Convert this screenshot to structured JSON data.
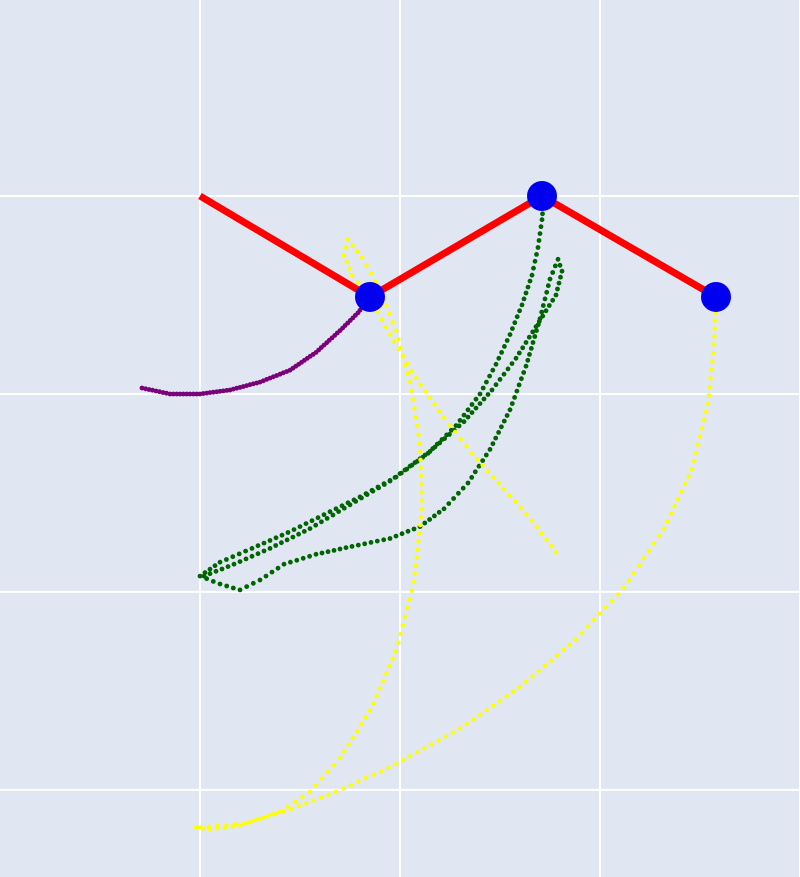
{
  "chart_data": {
    "type": "scatter",
    "title": "",
    "xlabel": "",
    "ylabel": "",
    "grid": true,
    "xlim": [
      -1.0,
      3.0
    ],
    "ylim": [
      -3.44,
      0.99
    ],
    "xticks": [
      0,
      1,
      2,
      3
    ],
    "yticks": [
      -3,
      -2,
      -1,
      0
    ],
    "tick_labels_visible": false,
    "colors": {
      "background": "#e0e6f2",
      "grid": "#ffffff",
      "link": "#ff0000",
      "joint": "#0000ee",
      "trace_purple": "#7a007a",
      "trace_green": "#006400",
      "trace_yellow": "#ffff00"
    },
    "links": {
      "x": [
        0.0,
        0.85,
        1.71,
        2.58
      ],
      "y": [
        0.0,
        -0.51,
        0.0,
        -0.51
      ]
    },
    "joints": {
      "x": [
        0.85,
        1.71,
        2.58
      ],
      "y": [
        -0.51,
        0.0,
        -0.51
      ]
    },
    "traces": [
      {
        "color": "purple",
        "points": [
          [
            -0.29,
            -0.97
          ],
          [
            -0.15,
            -1.0
          ],
          [
            0.0,
            -1.0
          ],
          [
            0.15,
            -0.98
          ],
          [
            0.3,
            -0.94
          ],
          [
            0.45,
            -0.88
          ],
          [
            0.58,
            -0.79
          ],
          [
            0.7,
            -0.68
          ],
          [
            0.79,
            -0.59
          ],
          [
            0.85,
            -0.51
          ]
        ]
      },
      {
        "color": "green",
        "points": [
          [
            1.72,
            0.0
          ],
          [
            1.71,
            -0.12
          ],
          [
            1.69,
            -0.26
          ],
          [
            1.66,
            -0.4
          ],
          [
            1.61,
            -0.55
          ],
          [
            1.55,
            -0.7
          ],
          [
            1.48,
            -0.85
          ],
          [
            1.4,
            -1.0
          ],
          [
            1.28,
            -1.16
          ],
          [
            1.14,
            -1.3
          ],
          [
            0.98,
            -1.42
          ],
          [
            0.8,
            -1.52
          ],
          [
            0.62,
            -1.61
          ],
          [
            0.44,
            -1.7
          ],
          [
            0.26,
            -1.78
          ],
          [
            0.1,
            -1.85
          ],
          [
            0.0,
            -1.92
          ],
          [
            0.1,
            -1.96
          ],
          [
            0.2,
            -1.99
          ],
          [
            0.3,
            -1.94
          ],
          [
            0.42,
            -1.86
          ],
          [
            0.58,
            -1.81
          ],
          [
            0.76,
            -1.77
          ],
          [
            0.95,
            -1.73
          ],
          [
            1.1,
            -1.67
          ],
          [
            1.22,
            -1.58
          ],
          [
            1.34,
            -1.45
          ],
          [
            1.45,
            -1.28
          ],
          [
            1.55,
            -1.08
          ],
          [
            1.63,
            -0.86
          ],
          [
            1.7,
            -0.62
          ],
          [
            1.75,
            -0.42
          ],
          [
            1.79,
            -0.32
          ],
          [
            1.81,
            -0.38
          ],
          [
            1.78,
            -0.5
          ],
          [
            1.68,
            -0.66
          ],
          [
            1.58,
            -0.82
          ],
          [
            1.46,
            -0.98
          ],
          [
            1.32,
            -1.14
          ],
          [
            1.15,
            -1.29
          ],
          [
            0.95,
            -1.44
          ],
          [
            0.75,
            -1.56
          ],
          [
            0.55,
            -1.68
          ],
          [
            0.35,
            -1.78
          ],
          [
            0.17,
            -1.86
          ],
          [
            0.02,
            -1.92
          ]
        ]
      },
      {
        "color": "yellow",
        "points": [
          [
            2.58,
            -0.51
          ],
          [
            2.57,
            -0.75
          ],
          [
            2.54,
            -1.05
          ],
          [
            2.46,
            -1.38
          ],
          [
            2.32,
            -1.68
          ],
          [
            2.12,
            -1.98
          ],
          [
            1.88,
            -2.24
          ],
          [
            1.6,
            -2.48
          ],
          [
            1.3,
            -2.69
          ],
          [
            0.98,
            -2.87
          ],
          [
            0.68,
            -3.01
          ],
          [
            0.42,
            -3.11
          ],
          [
            0.22,
            -3.17
          ],
          [
            0.0,
            -3.19
          ],
          [
            -0.02,
            -3.19
          ]
        ]
      },
      {
        "color": "yellow",
        "points": [
          [
            0.85,
            -0.51
          ],
          [
            0.76,
            -0.4
          ],
          [
            0.72,
            -0.3
          ],
          [
            0.74,
            -0.22
          ],
          [
            0.81,
            -0.31
          ],
          [
            0.9,
            -0.47
          ],
          [
            0.98,
            -0.68
          ],
          [
            1.05,
            -0.94
          ],
          [
            1.1,
            -1.25
          ],
          [
            1.11,
            -1.58
          ],
          [
            1.07,
            -1.95
          ],
          [
            0.98,
            -2.3
          ],
          [
            0.85,
            -2.6
          ],
          [
            0.7,
            -2.84
          ],
          [
            0.55,
            -3.01
          ],
          [
            0.4,
            -3.11
          ],
          [
            0.2,
            -3.18
          ],
          [
            0.05,
            -3.2
          ],
          [
            -0.02,
            -3.19
          ]
        ]
      },
      {
        "color": "yellow",
        "points": [
          [
            0.85,
            -0.51
          ],
          [
            0.95,
            -0.7
          ],
          [
            1.08,
            -0.92
          ],
          [
            1.22,
            -1.12
          ],
          [
            1.36,
            -1.3
          ],
          [
            1.52,
            -1.48
          ],
          [
            1.66,
            -1.64
          ],
          [
            1.78,
            -1.8
          ]
        ]
      }
    ]
  }
}
